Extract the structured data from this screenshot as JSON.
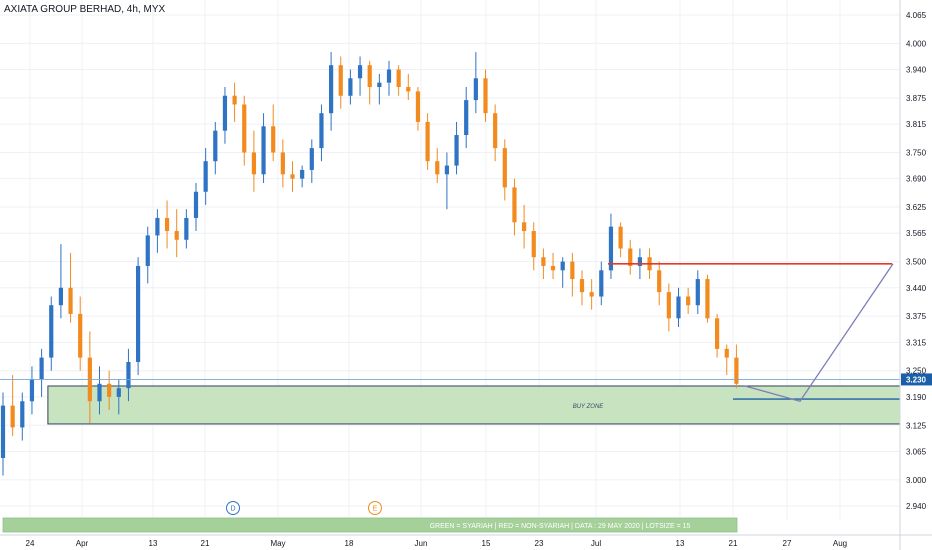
{
  "chart_data": {
    "type": "candlestick",
    "title": "AXIATA GROUP BERHAD, 4h, MYX",
    "colors": {
      "up": "#2e73c4",
      "down": "#f28a1e",
      "grid": "#eef1f5",
      "axis_line": "#d1d4dc",
      "zone_fill": "#c8e3bf",
      "zone_border": "#33415c",
      "resistance": "#e03a2b",
      "target": "#1f5fa8",
      "projection": "#7d7fb8",
      "price_tag": "#1a5fa8",
      "banner_fill": "#a5d09a"
    },
    "y_ticks": [
      "4.065",
      "4.000",
      "3.940",
      "3.875",
      "3.815",
      "3.750",
      "3.690",
      "3.625",
      "3.565",
      "3.500",
      "3.440",
      "3.375",
      "3.315",
      "3.250",
      "3.190",
      "3.125",
      "3.065",
      "3.000",
      "2.940"
    ],
    "ylim": [
      2.9,
      4.09
    ],
    "x_ticks": [
      "24",
      "Apr",
      "13",
      "21",
      "May",
      "18",
      "Jun",
      "15",
      "23",
      "Jul",
      "13",
      "21",
      "27",
      "Aug"
    ],
    "current_price": "3.230",
    "buy_zone": {
      "label": "BUY ZONE",
      "top": 3.215,
      "bottom": 3.128,
      "start_bar": 6,
      "end": "right-edge"
    },
    "resistance_level": 3.495,
    "target_level": 3.185,
    "projection": [
      [
        3.215,
        3.18
      ],
      [
        3.18,
        3.495
      ]
    ],
    "event_markers": [
      {
        "label": "D",
        "color": "#2e73c4"
      },
      {
        "label": "E",
        "color": "#f28a1e"
      }
    ],
    "banner": "GREEN = SYARIAH  |  RED = NON-SYARIAH  |  DATA : 29 MAY 2020  |  LOTSIZE = 15",
    "ohlc": [
      [
        3.05,
        3.2,
        3.01,
        3.17
      ],
      [
        3.17,
        3.24,
        3.1,
        3.12
      ],
      [
        3.12,
        3.2,
        3.09,
        3.18
      ],
      [
        3.18,
        3.26,
        3.15,
        3.23
      ],
      [
        3.23,
        3.3,
        3.19,
        3.28
      ],
      [
        3.28,
        3.42,
        3.25,
        3.4
      ],
      [
        3.4,
        3.54,
        3.37,
        3.44
      ],
      [
        3.44,
        3.52,
        3.36,
        3.38
      ],
      [
        3.38,
        3.42,
        3.25,
        3.28
      ],
      [
        3.28,
        3.34,
        3.13,
        3.18
      ],
      [
        3.18,
        3.26,
        3.15,
        3.22
      ],
      [
        3.22,
        3.25,
        3.16,
        3.19
      ],
      [
        3.19,
        3.23,
        3.15,
        3.21
      ],
      [
        3.21,
        3.3,
        3.18,
        3.27
      ],
      [
        3.27,
        3.51,
        3.24,
        3.49
      ],
      [
        3.49,
        3.58,
        3.45,
        3.56
      ],
      [
        3.56,
        3.62,
        3.52,
        3.6
      ],
      [
        3.6,
        3.64,
        3.53,
        3.57
      ],
      [
        3.57,
        3.62,
        3.51,
        3.55
      ],
      [
        3.55,
        3.62,
        3.53,
        3.6
      ],
      [
        3.6,
        3.68,
        3.57,
        3.66
      ],
      [
        3.66,
        3.76,
        3.63,
        3.73
      ],
      [
        3.73,
        3.82,
        3.7,
        3.8
      ],
      [
        3.8,
        3.9,
        3.77,
        3.88
      ],
      [
        3.88,
        3.91,
        3.82,
        3.86
      ],
      [
        3.86,
        3.88,
        3.72,
        3.75
      ],
      [
        3.75,
        3.8,
        3.66,
        3.7
      ],
      [
        3.7,
        3.84,
        3.68,
        3.81
      ],
      [
        3.81,
        3.86,
        3.73,
        3.75
      ],
      [
        3.75,
        3.78,
        3.67,
        3.7
      ],
      [
        3.7,
        3.73,
        3.66,
        3.69
      ],
      [
        3.69,
        3.72,
        3.67,
        3.71
      ],
      [
        3.71,
        3.78,
        3.68,
        3.76
      ],
      [
        3.76,
        3.86,
        3.73,
        3.84
      ],
      [
        3.84,
        3.98,
        3.8,
        3.95
      ],
      [
        3.95,
        3.97,
        3.85,
        3.88
      ],
      [
        3.88,
        3.94,
        3.86,
        3.92
      ],
      [
        3.92,
        3.97,
        3.88,
        3.95
      ],
      [
        3.95,
        3.96,
        3.86,
        3.9
      ],
      [
        3.9,
        3.93,
        3.86,
        3.91
      ],
      [
        3.91,
        3.96,
        3.88,
        3.94
      ],
      [
        3.94,
        3.95,
        3.88,
        3.9
      ],
      [
        3.9,
        3.93,
        3.87,
        3.89
      ],
      [
        3.89,
        3.9,
        3.8,
        3.82
      ],
      [
        3.82,
        3.84,
        3.71,
        3.73
      ],
      [
        3.73,
        3.76,
        3.68,
        3.7
      ],
      [
        3.7,
        3.75,
        3.62,
        3.72
      ],
      [
        3.72,
        3.82,
        3.7,
        3.79
      ],
      [
        3.79,
        3.9,
        3.76,
        3.87
      ],
      [
        3.87,
        3.98,
        3.84,
        3.92
      ],
      [
        3.92,
        3.94,
        3.82,
        3.84
      ],
      [
        3.84,
        3.86,
        3.73,
        3.76
      ],
      [
        3.76,
        3.78,
        3.64,
        3.67
      ],
      [
        3.67,
        3.69,
        3.56,
        3.59
      ],
      [
        3.59,
        3.63,
        3.53,
        3.57
      ],
      [
        3.57,
        3.59,
        3.48,
        3.51
      ],
      [
        3.51,
        3.53,
        3.46,
        3.49
      ],
      [
        3.49,
        3.52,
        3.46,
        3.48
      ],
      [
        3.48,
        3.51,
        3.44,
        3.5
      ],
      [
        3.5,
        3.52,
        3.42,
        3.46
      ],
      [
        3.46,
        3.48,
        3.4,
        3.43
      ],
      [
        3.43,
        3.46,
        3.39,
        3.42
      ],
      [
        3.42,
        3.5,
        3.4,
        3.48
      ],
      [
        3.48,
        3.61,
        3.46,
        3.58
      ],
      [
        3.58,
        3.59,
        3.51,
        3.53
      ],
      [
        3.53,
        3.55,
        3.47,
        3.49
      ],
      [
        3.49,
        3.53,
        3.46,
        3.51
      ],
      [
        3.51,
        3.53,
        3.46,
        3.48
      ],
      [
        3.48,
        3.5,
        3.4,
        3.43
      ],
      [
        3.43,
        3.45,
        3.34,
        3.37
      ],
      [
        3.37,
        3.44,
        3.35,
        3.42
      ],
      [
        3.42,
        3.44,
        3.38,
        3.4
      ],
      [
        3.4,
        3.48,
        3.38,
        3.46
      ],
      [
        3.46,
        3.47,
        3.36,
        3.37
      ],
      [
        3.37,
        3.38,
        3.28,
        3.3
      ],
      [
        3.3,
        3.31,
        3.24,
        3.28
      ],
      [
        3.28,
        3.31,
        3.21,
        3.22
      ]
    ]
  }
}
